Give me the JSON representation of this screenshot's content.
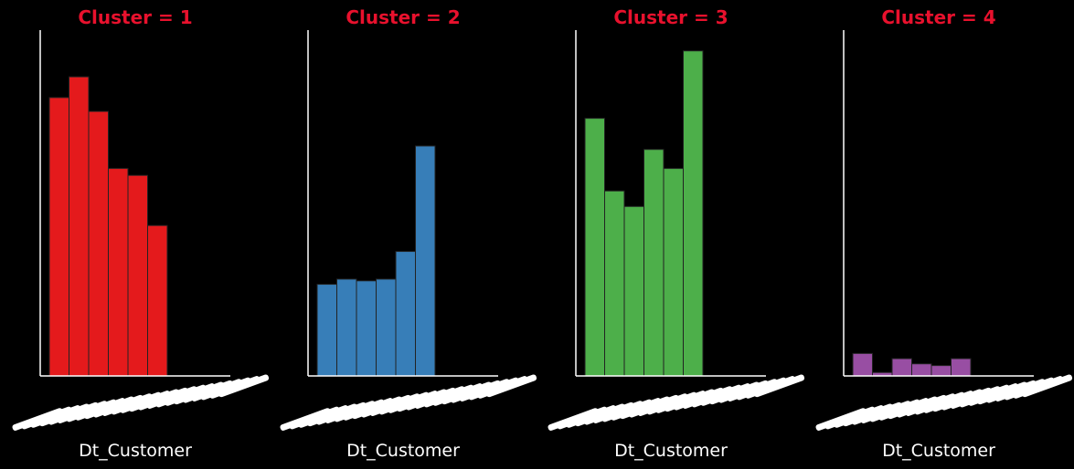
{
  "figure": {
    "background": "#000000",
    "title_color": "#e8112d",
    "axis_color": "#ffffff"
  },
  "chart_data": [
    {
      "type": "bar",
      "title": "Cluster = 1",
      "xlabel": "Dt_Customer",
      "ylabel": "",
      "color": "#e41a1c",
      "bins": 9,
      "values": [
        80.5,
        86.5,
        76.5,
        60,
        58,
        43.5,
        0,
        0,
        0
      ],
      "ylim": [
        0,
        100
      ]
    },
    {
      "type": "bar",
      "title": "Cluster = 2",
      "xlabel": "Dt_Customer",
      "ylabel": "",
      "color": "#377eb8",
      "bins": 8,
      "values": [
        26.5,
        28,
        27.5,
        28,
        36,
        66.5,
        0,
        0
      ],
      "ylim": [
        0,
        100
      ]
    },
    {
      "type": "bar",
      "title": "Cluster = 3",
      "xlabel": "Dt_Customer",
      "ylabel": "",
      "color": "#4daf4a",
      "bins": 6,
      "values": [
        74.5,
        53.5,
        49,
        65.5,
        60,
        94
      ],
      "ylim": [
        0,
        100
      ]
    },
    {
      "type": "bar",
      "title": "Cluster = 4",
      "xlabel": "Dt_Customer",
      "ylabel": "",
      "color": "#984ea3",
      "bins": 8,
      "values": [
        6.5,
        1,
        5,
        3.5,
        3,
        5,
        0,
        0
      ],
      "ylim": [
        0,
        100
      ]
    }
  ]
}
